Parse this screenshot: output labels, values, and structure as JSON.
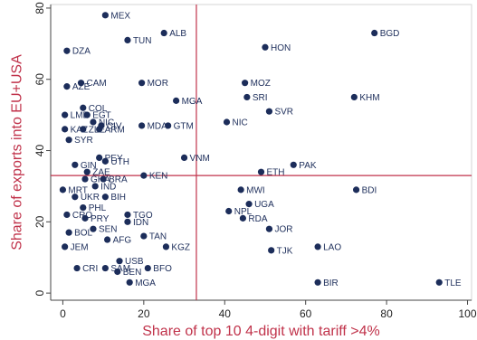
{
  "chart_data": {
    "type": "scatter",
    "title": "",
    "xlabel": "Share of top 10 4-digit with tariff >4%",
    "ylabel": "Share of exports into EU+USA",
    "xlim": [
      -3,
      101
    ],
    "ylim": [
      -2,
      81
    ],
    "xticks": [
      "0",
      "20",
      "40",
      "60",
      "80",
      "100"
    ],
    "yticks": [
      "0",
      "20",
      "40",
      "60",
      "80"
    ],
    "reference_lines": {
      "x": 33,
      "y": 33
    },
    "colors": {
      "points": "#1c2d5a",
      "reference": "#c0324a",
      "axis_title": "#c0324a"
    },
    "grid": false,
    "points": [
      {
        "label": "MEX",
        "x": 10.5,
        "y": 78
      },
      {
        "label": "BGD",
        "x": 77,
        "y": 73
      },
      {
        "label": "ALB",
        "x": 25,
        "y": 73
      },
      {
        "label": "TUN",
        "x": 16,
        "y": 71
      },
      {
        "label": "HON",
        "x": 50,
        "y": 69
      },
      {
        "label": "DZA",
        "x": 1,
        "y": 68
      },
      {
        "label": "CAM",
        "x": 4.5,
        "y": 59
      },
      {
        "label": "MOR",
        "x": 19.5,
        "y": 59
      },
      {
        "label": "MOZ",
        "x": 45,
        "y": 59
      },
      {
        "label": "AZE",
        "x": 1,
        "y": 58
      },
      {
        "label": "KHM",
        "x": 72,
        "y": 55
      },
      {
        "label": "SRI",
        "x": 45.5,
        "y": 55
      },
      {
        "label": "MGA",
        "x": 28,
        "y": 54
      },
      {
        "label": "COL",
        "x": 5,
        "y": 52
      },
      {
        "label": "SVR",
        "x": 51,
        "y": 51
      },
      {
        "label": "LMB",
        "x": 0.5,
        "y": 50
      },
      {
        "label": "EGT",
        "x": 6,
        "y": 50
      },
      {
        "label": "NIC",
        "x": 7.5,
        "y": 48
      },
      {
        "label": "NIC",
        "x": 40.5,
        "y": 48
      },
      {
        "label": "CIV",
        "x": 9.5,
        "y": 47
      },
      {
        "label": "MDA",
        "x": 19.5,
        "y": 47
      },
      {
        "label": "GTM",
        "x": 26,
        "y": 47
      },
      {
        "label": "KAZ",
        "x": 0.5,
        "y": 46
      },
      {
        "label": "ZLE",
        "x": 5,
        "y": 46
      },
      {
        "label": "ARM",
        "x": 9,
        "y": 46
      },
      {
        "label": "SYR",
        "x": 1.5,
        "y": 43
      },
      {
        "label": "PEY",
        "x": 9,
        "y": 38
      },
      {
        "label": "VNM",
        "x": 30,
        "y": 38
      },
      {
        "label": "UTH",
        "x": 10.5,
        "y": 37
      },
      {
        "label": "GIN",
        "x": 3,
        "y": 36
      },
      {
        "label": "PAK",
        "x": 57,
        "y": 36
      },
      {
        "label": "ZAE",
        "x": 6,
        "y": 34
      },
      {
        "label": "ETH",
        "x": 49,
        "y": 34
      },
      {
        "label": "KEN",
        "x": 20,
        "y": 33
      },
      {
        "label": "GHA",
        "x": 5.5,
        "y": 32
      },
      {
        "label": "BRA",
        "x": 10,
        "y": 32
      },
      {
        "label": "IND",
        "x": 8,
        "y": 30
      },
      {
        "label": "MRT",
        "x": 0,
        "y": 29
      },
      {
        "label": "MWI",
        "x": 44,
        "y": 29
      },
      {
        "label": "BDI",
        "x": 72.5,
        "y": 29
      },
      {
        "label": "UKR",
        "x": 3,
        "y": 27
      },
      {
        "label": "BIH",
        "x": 10.5,
        "y": 27
      },
      {
        "label": "UGA",
        "x": 46,
        "y": 25
      },
      {
        "label": "PHL",
        "x": 5,
        "y": 24
      },
      {
        "label": "NPL",
        "x": 41,
        "y": 23
      },
      {
        "label": "CRO",
        "x": 1,
        "y": 22
      },
      {
        "label": "TGO",
        "x": 16,
        "y": 22
      },
      {
        "label": "PRY",
        "x": 5.5,
        "y": 21
      },
      {
        "label": "RDA",
        "x": 44.5,
        "y": 21
      },
      {
        "label": "IDN",
        "x": 16,
        "y": 20
      },
      {
        "label": "SEN",
        "x": 7.5,
        "y": 18
      },
      {
        "label": "JOR",
        "x": 51,
        "y": 18
      },
      {
        "label": "BOL",
        "x": 1.5,
        "y": 17
      },
      {
        "label": "TAN",
        "x": 20,
        "y": 16
      },
      {
        "label": "AFG",
        "x": 11,
        "y": 15
      },
      {
        "label": "JEM",
        "x": 0.5,
        "y": 13
      },
      {
        "label": "KGZ",
        "x": 25.5,
        "y": 13
      },
      {
        "label": "LAO",
        "x": 63,
        "y": 13
      },
      {
        "label": "TJK",
        "x": 51.5,
        "y": 12
      },
      {
        "label": "USB",
        "x": 14,
        "y": 9
      },
      {
        "label": "CRI",
        "x": 3.5,
        "y": 7
      },
      {
        "label": "SAM",
        "x": 10.5,
        "y": 7
      },
      {
        "label": "BFO",
        "x": 21,
        "y": 7
      },
      {
        "label": "BEN",
        "x": 13.5,
        "y": 6
      },
      {
        "label": "MGA",
        "x": 16.5,
        "y": 3
      },
      {
        "label": "BIR",
        "x": 63,
        "y": 3
      },
      {
        "label": "TLE",
        "x": 93,
        "y": 3
      }
    ]
  }
}
